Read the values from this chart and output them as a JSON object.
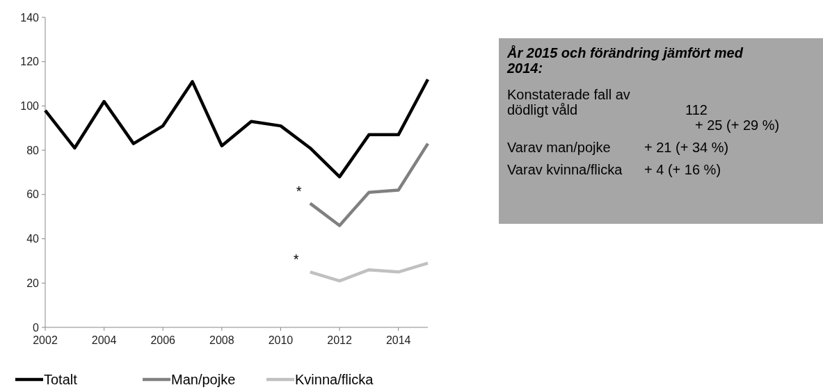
{
  "chart_data": [
    {
      "type": "line",
      "x": [
        2002,
        2003,
        2004,
        2005,
        2006,
        2007,
        2008,
        2009,
        2010,
        2011,
        2012,
        2013,
        2014,
        2015
      ],
      "xlim": [
        2002,
        2015
      ],
      "xticks": [
        2002,
        2004,
        2006,
        2008,
        2010,
        2012,
        2014
      ],
      "ylim": [
        0,
        140
      ],
      "yticks": [
        0,
        20,
        40,
        60,
        80,
        100,
        120,
        140
      ],
      "grid": false,
      "legend": "bottom",
      "marker": "none",
      "line_style": "solid",
      "series": [
        {
          "name": "Totalt",
          "color": "#000000",
          "values": [
            98,
            81,
            102,
            83,
            91,
            111,
            82,
            93,
            91,
            81,
            68,
            87,
            87,
            112
          ]
        },
        {
          "name": "Man/pojke",
          "color": "#808080",
          "values": [
            null,
            null,
            null,
            null,
            null,
            null,
            null,
            null,
            null,
            56,
            46,
            61,
            62,
            83
          ]
        },
        {
          "name": "Kvinna/flicka",
          "color": "#c0c0c0",
          "values": [
            null,
            null,
            null,
            null,
            null,
            null,
            null,
            null,
            null,
            25,
            21,
            26,
            25,
            29
          ]
        }
      ],
      "annotations": [
        {
          "text": "*",
          "x": 2011,
          "y": 56
        },
        {
          "text": "*",
          "x": 2011,
          "y": 25
        }
      ]
    },
    {
      "type": "other",
      "title": "År 2015 och förändring jämfört med 2014:",
      "annotations": [
        "Konstaterade fall av dödligt våld",
        "112",
        "+ 25 (+ 29 %)",
        "Varav man/pojke",
        "+ 21 (+ 34 %)",
        "Varav kvinna/flicka",
        "+ 4 (+ 16 %)"
      ]
    }
  ]
}
